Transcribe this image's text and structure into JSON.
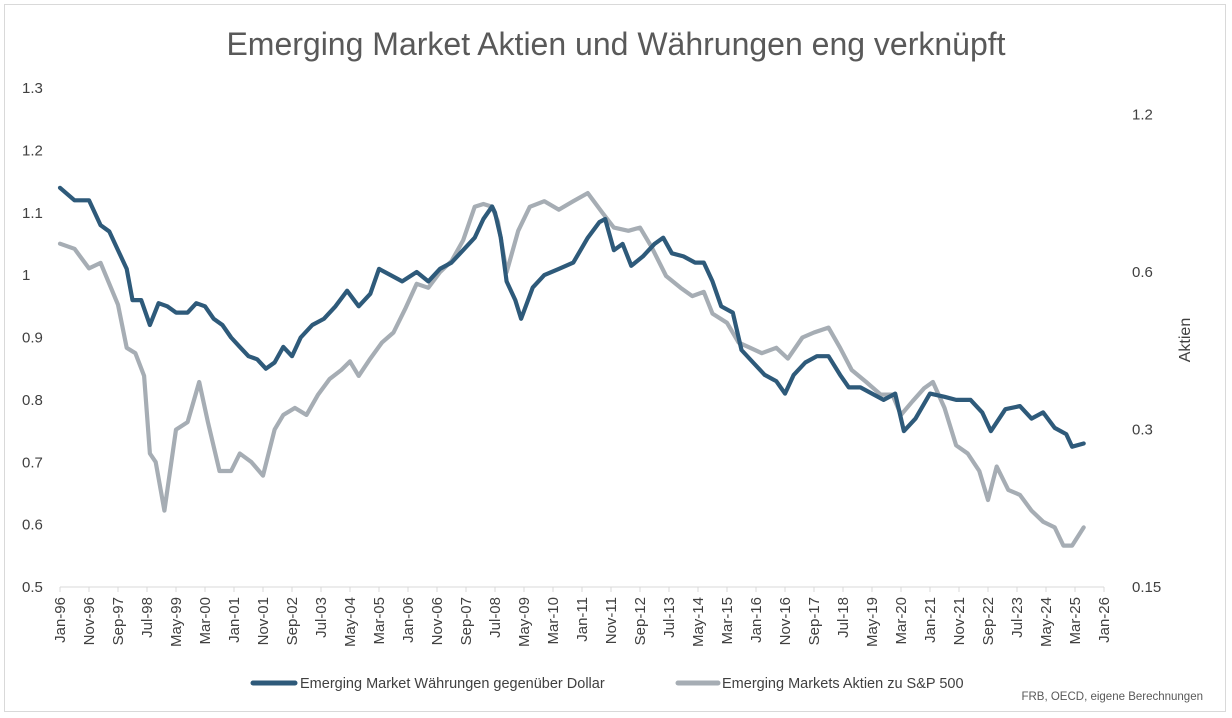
{
  "chart_data": {
    "type": "line",
    "title": "Emerging Market Aktien und Währungen eng verknüpft",
    "y_left": {
      "min": 0.5,
      "max": 1.3,
      "ticks": [
        "1.3",
        "1.2",
        "1.1",
        "1",
        "0.9",
        "0.8",
        "0.7",
        "0.6",
        "0.5"
      ]
    },
    "y_right": {
      "label": "Aktien",
      "min": 0.15,
      "max": 1.35,
      "ticks": [
        "1.2",
        "0.6",
        "0.3",
        "0.15"
      ],
      "tick_values": [
        1.2,
        0.6,
        0.3,
        0.15
      ]
    },
    "x_ticks": [
      "Jan-96",
      "Nov-96",
      "Sep-97",
      "Jul-98",
      "May-99",
      "Mar-00",
      "Jan-01",
      "Nov-01",
      "Sep-02",
      "Jul-03",
      "May-04",
      "Mar-05",
      "Jan-06",
      "Nov-06",
      "Sep-07",
      "Jul-08",
      "May-09",
      "Mar-10",
      "Jan-11",
      "Nov-11",
      "Sep-12",
      "Jul-13",
      "May-14",
      "Mar-15",
      "Jan-16",
      "Nov-16",
      "Sep-17",
      "Jul-18",
      "May-19",
      "Mar-20",
      "Jan-21",
      "Nov-21",
      "Sep-22",
      "Jul-23",
      "May-24",
      "Mar-25",
      "Jan-26"
    ],
    "x_range": [
      "1996-01",
      "2026-01"
    ],
    "grid": false,
    "legend_position": "bottom",
    "source": "FRB, OECD, eigene Berechnungen",
    "series": [
      {
        "name": "Emerging Market Währungen gegenüber Dollar",
        "axis": "left",
        "color": "#2e5a7a",
        "points": [
          [
            "1996-01",
            1.14
          ],
          [
            "1996-06",
            1.12
          ],
          [
            "1996-11",
            1.12
          ],
          [
            "1997-03",
            1.08
          ],
          [
            "1997-06",
            1.07
          ],
          [
            "1997-09",
            1.04
          ],
          [
            "1997-12",
            1.01
          ],
          [
            "1998-02",
            0.96
          ],
          [
            "1998-05",
            0.96
          ],
          [
            "1998-08",
            0.92
          ],
          [
            "1998-11",
            0.955
          ],
          [
            "1999-02",
            0.95
          ],
          [
            "1999-05",
            0.94
          ],
          [
            "1999-09",
            0.94
          ],
          [
            "1999-12",
            0.955
          ],
          [
            "2000-03",
            0.95
          ],
          [
            "2000-06",
            0.93
          ],
          [
            "2000-09",
            0.92
          ],
          [
            "2000-12",
            0.9
          ],
          [
            "2001-03",
            0.885
          ],
          [
            "2001-06",
            0.87
          ],
          [
            "2001-09",
            0.865
          ],
          [
            "2001-12",
            0.85
          ],
          [
            "2002-03",
            0.86
          ],
          [
            "2002-06",
            0.885
          ],
          [
            "2002-09",
            0.87
          ],
          [
            "2002-12",
            0.9
          ],
          [
            "2003-04",
            0.92
          ],
          [
            "2003-08",
            0.93
          ],
          [
            "2003-12",
            0.95
          ],
          [
            "2004-04",
            0.975
          ],
          [
            "2004-08",
            0.95
          ],
          [
            "2004-12",
            0.97
          ],
          [
            "2005-03",
            1.01
          ],
          [
            "2005-07",
            1.0
          ],
          [
            "2005-11",
            0.99
          ],
          [
            "2006-04",
            1.005
          ],
          [
            "2006-08",
            0.99
          ],
          [
            "2006-12",
            1.01
          ],
          [
            "2007-04",
            1.02
          ],
          [
            "2007-08",
            1.04
          ],
          [
            "2007-12",
            1.06
          ],
          [
            "2008-03",
            1.09
          ],
          [
            "2008-06",
            1.11
          ],
          [
            "2008-07",
            1.1
          ],
          [
            "2008-09",
            1.06
          ],
          [
            "2008-11",
            0.99
          ],
          [
            "2009-02",
            0.96
          ],
          [
            "2009-04",
            0.93
          ],
          [
            "2009-08",
            0.98
          ],
          [
            "2009-12",
            1.0
          ],
          [
            "2010-05",
            1.01
          ],
          [
            "2010-10",
            1.02
          ],
          [
            "2011-03",
            1.06
          ],
          [
            "2011-07",
            1.085
          ],
          [
            "2011-09",
            1.09
          ],
          [
            "2011-12",
            1.04
          ],
          [
            "2012-03",
            1.05
          ],
          [
            "2012-06",
            1.015
          ],
          [
            "2012-10",
            1.03
          ],
          [
            "2013-02",
            1.05
          ],
          [
            "2013-05",
            1.06
          ],
          [
            "2013-08",
            1.035
          ],
          [
            "2013-12",
            1.03
          ],
          [
            "2014-04",
            1.02
          ],
          [
            "2014-07",
            1.02
          ],
          [
            "2014-10",
            0.99
          ],
          [
            "2015-01",
            0.95
          ],
          [
            "2015-05",
            0.94
          ],
          [
            "2015-08",
            0.88
          ],
          [
            "2015-12",
            0.86
          ],
          [
            "2016-04",
            0.84
          ],
          [
            "2016-08",
            0.83
          ],
          [
            "2016-11",
            0.81
          ],
          [
            "2017-02",
            0.84
          ],
          [
            "2017-06",
            0.86
          ],
          [
            "2017-10",
            0.87
          ],
          [
            "2018-02",
            0.87
          ],
          [
            "2018-06",
            0.84
          ],
          [
            "2018-09",
            0.82
          ],
          [
            "2019-01",
            0.82
          ],
          [
            "2019-05",
            0.81
          ],
          [
            "2019-09",
            0.8
          ],
          [
            "2020-01",
            0.81
          ],
          [
            "2020-04",
            0.75
          ],
          [
            "2020-08",
            0.77
          ],
          [
            "2021-01",
            0.81
          ],
          [
            "2021-06",
            0.805
          ],
          [
            "2021-10",
            0.8
          ],
          [
            "2022-03",
            0.8
          ],
          [
            "2022-07",
            0.78
          ],
          [
            "2022-10",
            0.75
          ],
          [
            "2023-03",
            0.785
          ],
          [
            "2023-08",
            0.79
          ],
          [
            "2023-12",
            0.77
          ],
          [
            "2024-04",
            0.78
          ],
          [
            "2024-08",
            0.755
          ],
          [
            "2024-12",
            0.745
          ],
          [
            "2025-02",
            0.725
          ],
          [
            "2025-06",
            0.73
          ]
        ]
      },
      {
        "name": "Emerging Markets Aktien zu S&P 500",
        "axis": "right",
        "color": "#a6adb4",
        "points": [
          [
            "1996-01",
            0.68
          ],
          [
            "1996-06",
            0.665
          ],
          [
            "1996-11",
            0.61
          ],
          [
            "1997-03",
            0.625
          ],
          [
            "1997-06",
            0.57
          ],
          [
            "1997-09",
            0.52
          ],
          [
            "1997-12",
            0.43
          ],
          [
            "1998-03",
            0.42
          ],
          [
            "1998-06",
            0.38
          ],
          [
            "1998-08",
            0.27
          ],
          [
            "1998-10",
            0.26
          ],
          [
            "1999-01",
            0.21
          ],
          [
            "1999-05",
            0.3
          ],
          [
            "1999-09",
            0.31
          ],
          [
            "2000-01",
            0.37
          ],
          [
            "2000-04",
            0.31
          ],
          [
            "2000-08",
            0.25
          ],
          [
            "2000-12",
            0.25
          ],
          [
            "2001-03",
            0.27
          ],
          [
            "2001-07",
            0.26
          ],
          [
            "2001-11",
            0.245
          ],
          [
            "2002-03",
            0.3
          ],
          [
            "2002-06",
            0.32
          ],
          [
            "2002-10",
            0.33
          ],
          [
            "2003-02",
            0.32
          ],
          [
            "2003-06",
            0.35
          ],
          [
            "2003-10",
            0.375
          ],
          [
            "2004-02",
            0.39
          ],
          [
            "2004-05",
            0.405
          ],
          [
            "2004-08",
            0.38
          ],
          [
            "2004-12",
            0.41
          ],
          [
            "2005-04",
            0.44
          ],
          [
            "2005-08",
            0.46
          ],
          [
            "2005-12",
            0.51
          ],
          [
            "2006-04",
            0.57
          ],
          [
            "2006-08",
            0.56
          ],
          [
            "2006-12",
            0.6
          ],
          [
            "2007-04",
            0.63
          ],
          [
            "2007-08",
            0.69
          ],
          [
            "2007-12",
            0.8
          ],
          [
            "2008-03",
            0.81
          ],
          [
            "2008-06",
            0.8
          ],
          [
            "2008-08",
            0.75
          ],
          [
            "2008-11",
            0.6
          ],
          [
            "2009-03",
            0.72
          ],
          [
            "2009-07",
            0.8
          ],
          [
            "2009-12",
            0.82
          ],
          [
            "2010-05",
            0.79
          ],
          [
            "2010-10",
            0.82
          ],
          [
            "2011-03",
            0.85
          ],
          [
            "2011-08",
            0.78
          ],
          [
            "2011-12",
            0.73
          ],
          [
            "2012-05",
            0.72
          ],
          [
            "2012-09",
            0.73
          ],
          [
            "2013-01",
            0.67
          ],
          [
            "2013-06",
            0.59
          ],
          [
            "2013-11",
            0.56
          ],
          [
            "2014-03",
            0.54
          ],
          [
            "2014-07",
            0.55
          ],
          [
            "2014-10",
            0.5
          ],
          [
            "2015-03",
            0.48
          ],
          [
            "2015-07",
            0.44
          ],
          [
            "2015-11",
            0.43
          ],
          [
            "2016-03",
            0.42
          ],
          [
            "2016-08",
            0.43
          ],
          [
            "2016-12",
            0.41
          ],
          [
            "2017-05",
            0.45
          ],
          [
            "2017-09",
            0.46
          ],
          [
            "2018-02",
            0.47
          ],
          [
            "2018-06",
            0.43
          ],
          [
            "2018-10",
            0.39
          ],
          [
            "2019-03",
            0.37
          ],
          [
            "2019-08",
            0.35
          ],
          [
            "2019-12",
            0.35
          ],
          [
            "2020-03",
            0.32
          ],
          [
            "2020-07",
            0.34
          ],
          [
            "2020-11",
            0.36
          ],
          [
            "2021-02",
            0.37
          ],
          [
            "2021-06",
            0.33
          ],
          [
            "2021-10",
            0.28
          ],
          [
            "2022-02",
            0.27
          ],
          [
            "2022-06",
            0.25
          ],
          [
            "2022-09",
            0.22
          ],
          [
            "2022-12",
            0.255
          ],
          [
            "2023-04",
            0.23
          ],
          [
            "2023-08",
            0.225
          ],
          [
            "2023-12",
            0.21
          ],
          [
            "2024-04",
            0.2
          ],
          [
            "2024-08",
            0.195
          ],
          [
            "2024-11",
            0.18
          ],
          [
            "2025-02",
            0.18
          ],
          [
            "2025-06",
            0.195
          ]
        ]
      }
    ]
  }
}
